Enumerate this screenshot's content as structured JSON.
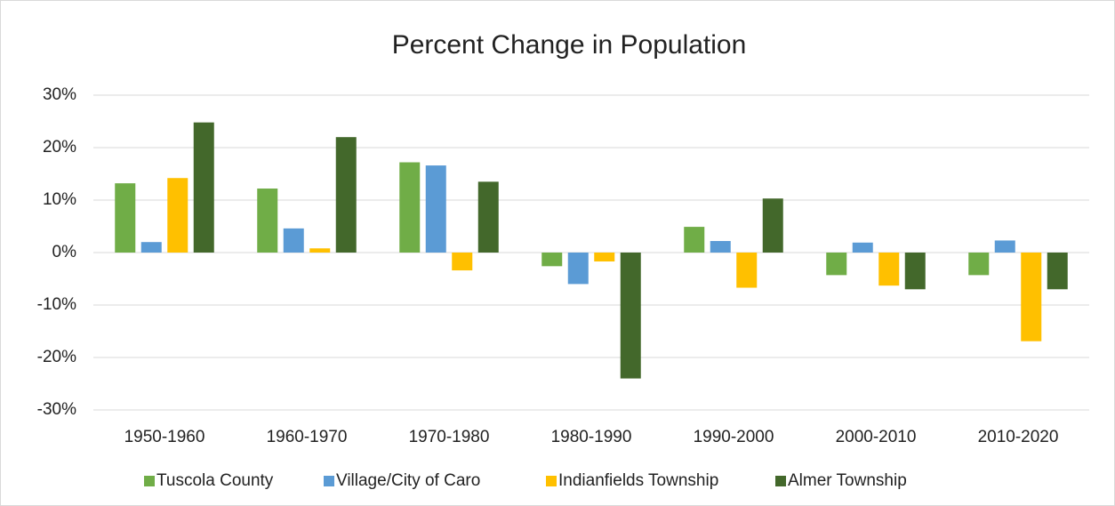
{
  "chart_data": {
    "type": "bar",
    "title": "Percent Change in Population",
    "categories": [
      "1950-1960",
      "1960-1970",
      "1970-1980",
      "1980-1990",
      "1990-2000",
      "2000-2010",
      "2010-2020"
    ],
    "series": [
      {
        "name": "Tuscola County",
        "color": "#70ad47",
        "values": [
          13.2,
          12.2,
          17.2,
          -2.6,
          4.9,
          -4.3,
          -4.3
        ]
      },
      {
        "name": "Village/City of Caro",
        "color": "#5b9bd5",
        "values": [
          2.0,
          4.6,
          16.6,
          -6.0,
          2.2,
          1.9,
          2.3
        ]
      },
      {
        "name": "Indianfields Township",
        "color": "#ffc000",
        "values": [
          14.2,
          0.8,
          -3.4,
          -1.7,
          -6.7,
          -6.3,
          -16.9
        ]
      },
      {
        "name": "Almer Township",
        "color": "#43682b",
        "values": [
          24.8,
          22.0,
          13.5,
          -24.0,
          10.3,
          -7.0,
          -7.0
        ]
      }
    ],
    "ylim": [
      -30,
      30
    ],
    "yticks": [
      {
        "value": -30,
        "label": "-30%"
      },
      {
        "value": -20,
        "label": "-20%"
      },
      {
        "value": -10,
        "label": "-10%"
      },
      {
        "value": 0,
        "label": "0%"
      },
      {
        "value": 10,
        "label": "10%"
      },
      {
        "value": 20,
        "label": "20%"
      },
      {
        "value": 30,
        "label": "30%"
      }
    ],
    "grid": true,
    "legend": "bottom"
  }
}
